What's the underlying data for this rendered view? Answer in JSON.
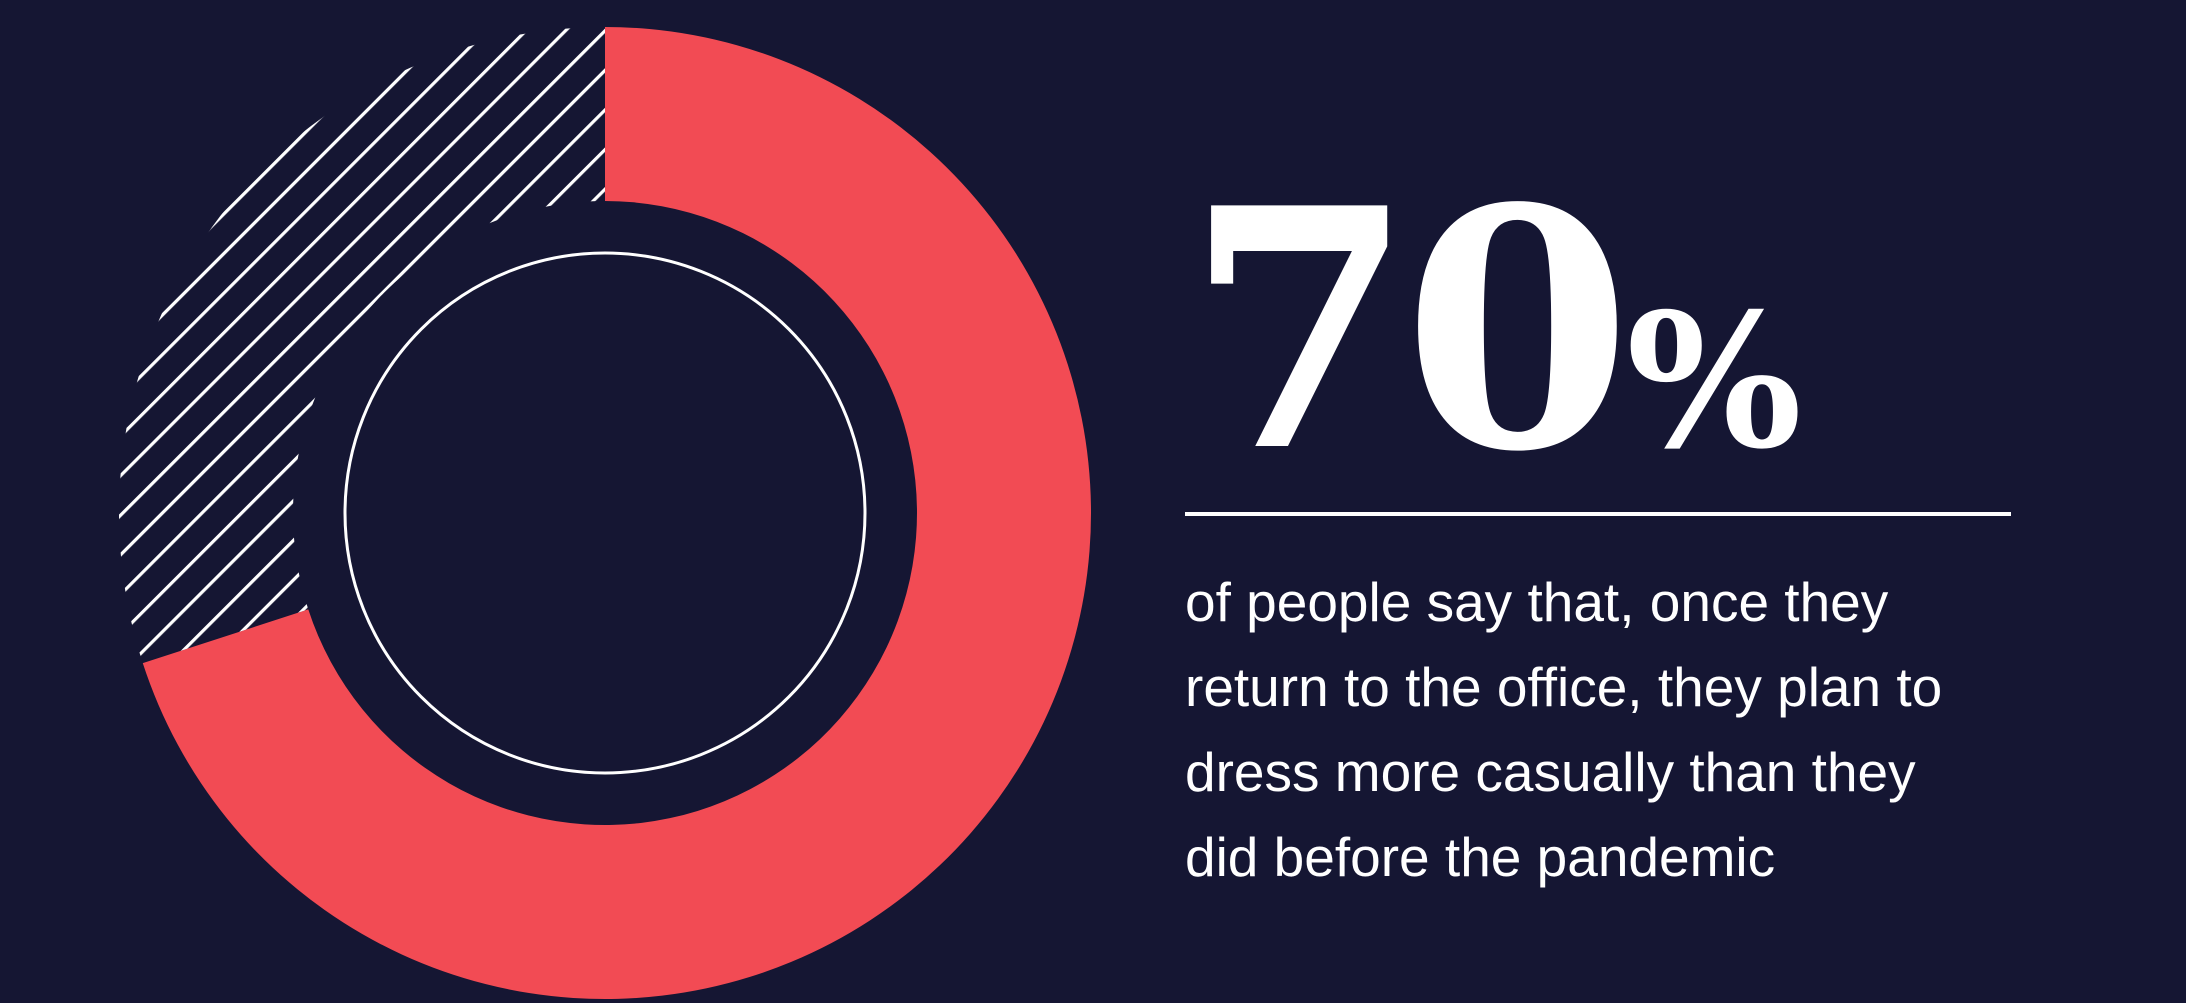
{
  "colors": {
    "background": "#151633",
    "accent": "#f24b54",
    "foreground": "#ffffff"
  },
  "stat": {
    "number": "70",
    "unit": "%",
    "caption": "of people say that, once they return to the office, they plan to dress more casually than they did before the pandemic"
  },
  "chart_data": {
    "type": "pie",
    "style": "donut",
    "values": [
      70,
      30
    ],
    "slices": [
      {
        "value": 70,
        "color": "#f24b54",
        "fill": "solid"
      },
      {
        "value": 30,
        "color": "#ffffff",
        "fill": "diagonal-hatch"
      }
    ],
    "start": "12 o'clock",
    "direction": "clockwise"
  }
}
